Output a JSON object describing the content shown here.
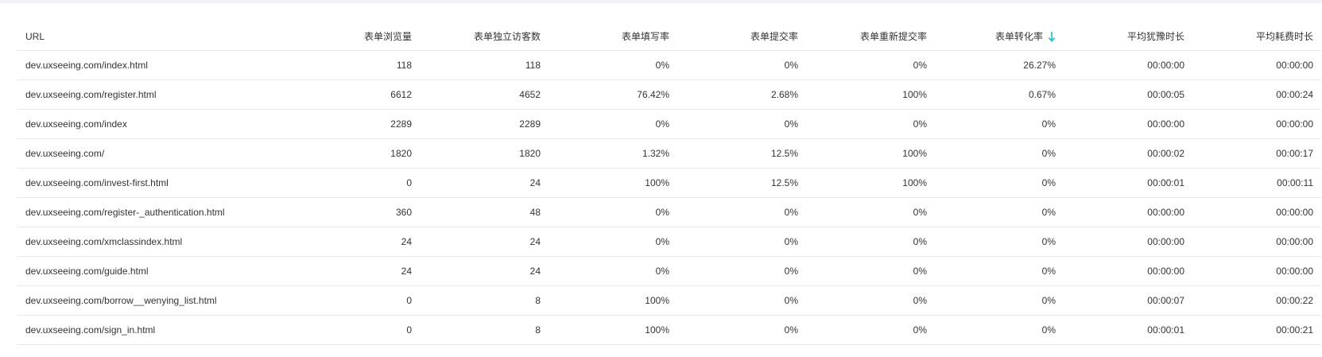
{
  "table": {
    "headers": [
      "URL",
      "表单浏览量",
      "表单独立访客数",
      "表单填写率",
      "表单提交率",
      "表单重新提交率",
      "表单转化率",
      "平均犹豫时长",
      "平均耗费时长"
    ],
    "sorted_column": "表单转化率",
    "sort_direction": "descending",
    "sort_icon": "arrow-down-icon",
    "accent_color": "#13c2c2",
    "rows": [
      [
        "dev.uxseeing.com/index.html",
        "118",
        "118",
        "0%",
        "0%",
        "0%",
        "26.27%",
        "00:00:00",
        "00:00:00"
      ],
      [
        "dev.uxseeing.com/register.html",
        "6612",
        "4652",
        "76.42%",
        "2.68%",
        "100%",
        "0.67%",
        "00:00:05",
        "00:00:24"
      ],
      [
        "dev.uxseeing.com/index",
        "2289",
        "2289",
        "0%",
        "0%",
        "0%",
        "0%",
        "00:00:00",
        "00:00:00"
      ],
      [
        "dev.uxseeing.com/",
        "1820",
        "1820",
        "1.32%",
        "12.5%",
        "100%",
        "0%",
        "00:00:02",
        "00:00:17"
      ],
      [
        "dev.uxseeing.com/invest-first.html",
        "0",
        "24",
        "100%",
        "12.5%",
        "100%",
        "0%",
        "00:00:01",
        "00:00:11"
      ],
      [
        "dev.uxseeing.com/register-_authentication.html",
        "360",
        "48",
        "0%",
        "0%",
        "0%",
        "0%",
        "00:00:00",
        "00:00:00"
      ],
      [
        "dev.uxseeing.com/xmclassindex.html",
        "24",
        "24",
        "0%",
        "0%",
        "0%",
        "0%",
        "00:00:00",
        "00:00:00"
      ],
      [
        "dev.uxseeing.com/guide.html",
        "24",
        "24",
        "0%",
        "0%",
        "0%",
        "0%",
        "00:00:00",
        "00:00:00"
      ],
      [
        "dev.uxseeing.com/borrow__wenying_list.html",
        "0",
        "8",
        "100%",
        "0%",
        "0%",
        "0%",
        "00:00:07",
        "00:00:22"
      ],
      [
        "dev.uxseeing.com/sign_in.html",
        "0",
        "8",
        "100%",
        "0%",
        "0%",
        "0%",
        "00:00:01",
        "00:00:21"
      ]
    ]
  }
}
